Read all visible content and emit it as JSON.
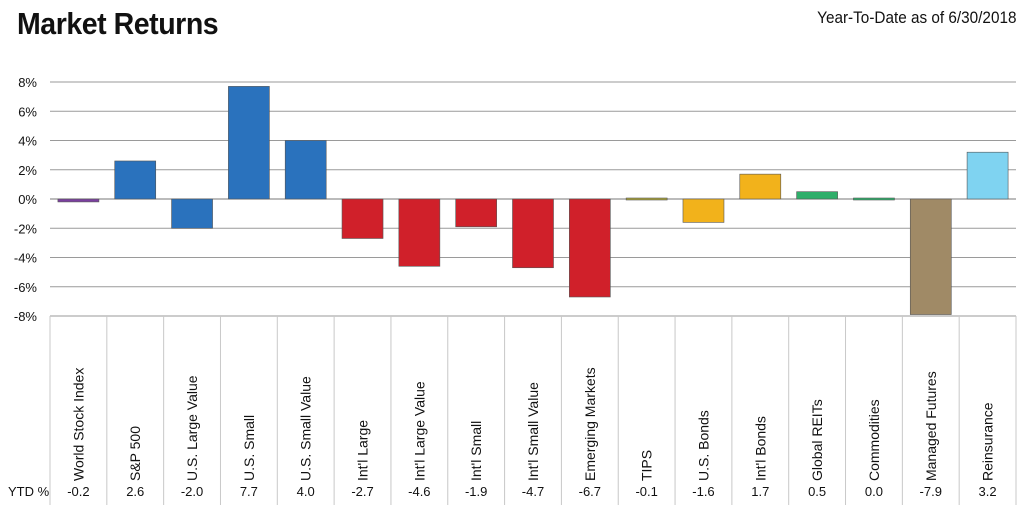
{
  "title": "Market Returns",
  "subtitle": "Year-To-Date as of 6/30/2018",
  "chart_data": {
    "type": "bar",
    "categories": [
      "World Stock Index",
      "S&P 500",
      "U.S. Large Value",
      "U.S. Small",
      "U.S. Small Value",
      "Int'l Large",
      "Int'l Large Value",
      "Int'l Small",
      "Int'l Small Value",
      "Emerging Markets",
      "TIPS",
      "U.S. Bonds",
      "Int'l Bonds",
      "Global REITs",
      "Commodities",
      "Managed Futures",
      "Reinsurance"
    ],
    "values": [
      -0.2,
      2.6,
      -2.0,
      7.7,
      4.0,
      -2.7,
      -4.6,
      -1.9,
      -4.7,
      -6.7,
      -0.1,
      -1.6,
      1.7,
      0.5,
      0.0,
      -7.9,
      3.2
    ],
    "value_labels": [
      "-0.2",
      "2.6",
      "-2.0",
      "7.7",
      "4.0",
      "-2.7",
      "-4.6",
      "-1.9",
      "-4.7",
      "-6.7",
      "-0.1",
      "-1.6",
      "1.7",
      "0.5",
      "0.0",
      "-7.9",
      "3.2"
    ],
    "colors": [
      "#7b3fa0",
      "#2a72bd",
      "#2a72bd",
      "#2a72bd",
      "#2a72bd",
      "#d0202a",
      "#d0202a",
      "#d0202a",
      "#d0202a",
      "#d0202a",
      "#a8a23a",
      "#f2b21b",
      "#f2b21b",
      "#2fae6a",
      "#2fae6a",
      "#a08a66",
      "#7fd3f1"
    ],
    "row_label": "YTD %",
    "y_ticks": [
      "8%",
      "6%",
      "4%",
      "2%",
      "0%",
      "-2%",
      "-4%",
      "-6%",
      "-8%"
    ],
    "y_tick_values": [
      8,
      6,
      4,
      2,
      0,
      -2,
      -4,
      -6,
      -8
    ],
    "ylim": [
      -8,
      8
    ],
    "grid": true,
    "legend": "none"
  }
}
